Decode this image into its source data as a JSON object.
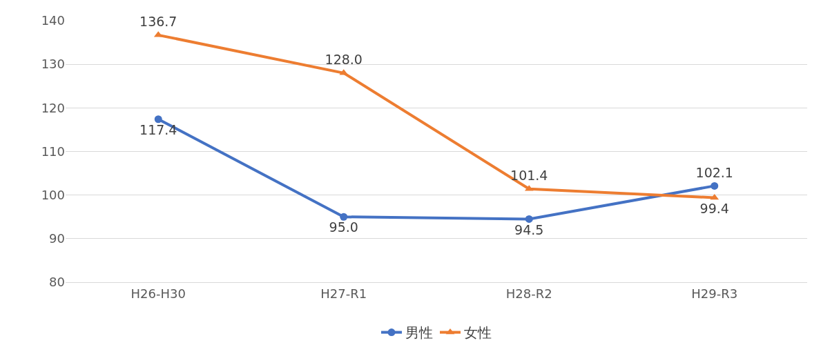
{
  "chart_data": {
    "type": "line",
    "categories": [
      "H26-H30",
      "H27-R1",
      "H28-R2",
      "H29-R3"
    ],
    "series": [
      {
        "name": "男性",
        "color": "#4472c4",
        "marker": "circle",
        "values": [
          117.4,
          95.0,
          94.5,
          102.1
        ],
        "value_labels": [
          "117.4",
          "95.0",
          "94.5",
          "102.1"
        ]
      },
      {
        "name": "女性",
        "color": "#ed7d31",
        "marker": "triangle",
        "values": [
          136.7,
          128.0,
          101.4,
          99.4
        ],
        "value_labels": [
          "136.7",
          "128.0",
          "101.4",
          "99.4"
        ]
      }
    ],
    "ylim": [
      80,
      140
    ],
    "yticks": [
      80,
      90,
      100,
      110,
      120,
      130,
      140
    ],
    "grid": "y",
    "legend": "bottom",
    "line_style": "solid"
  }
}
